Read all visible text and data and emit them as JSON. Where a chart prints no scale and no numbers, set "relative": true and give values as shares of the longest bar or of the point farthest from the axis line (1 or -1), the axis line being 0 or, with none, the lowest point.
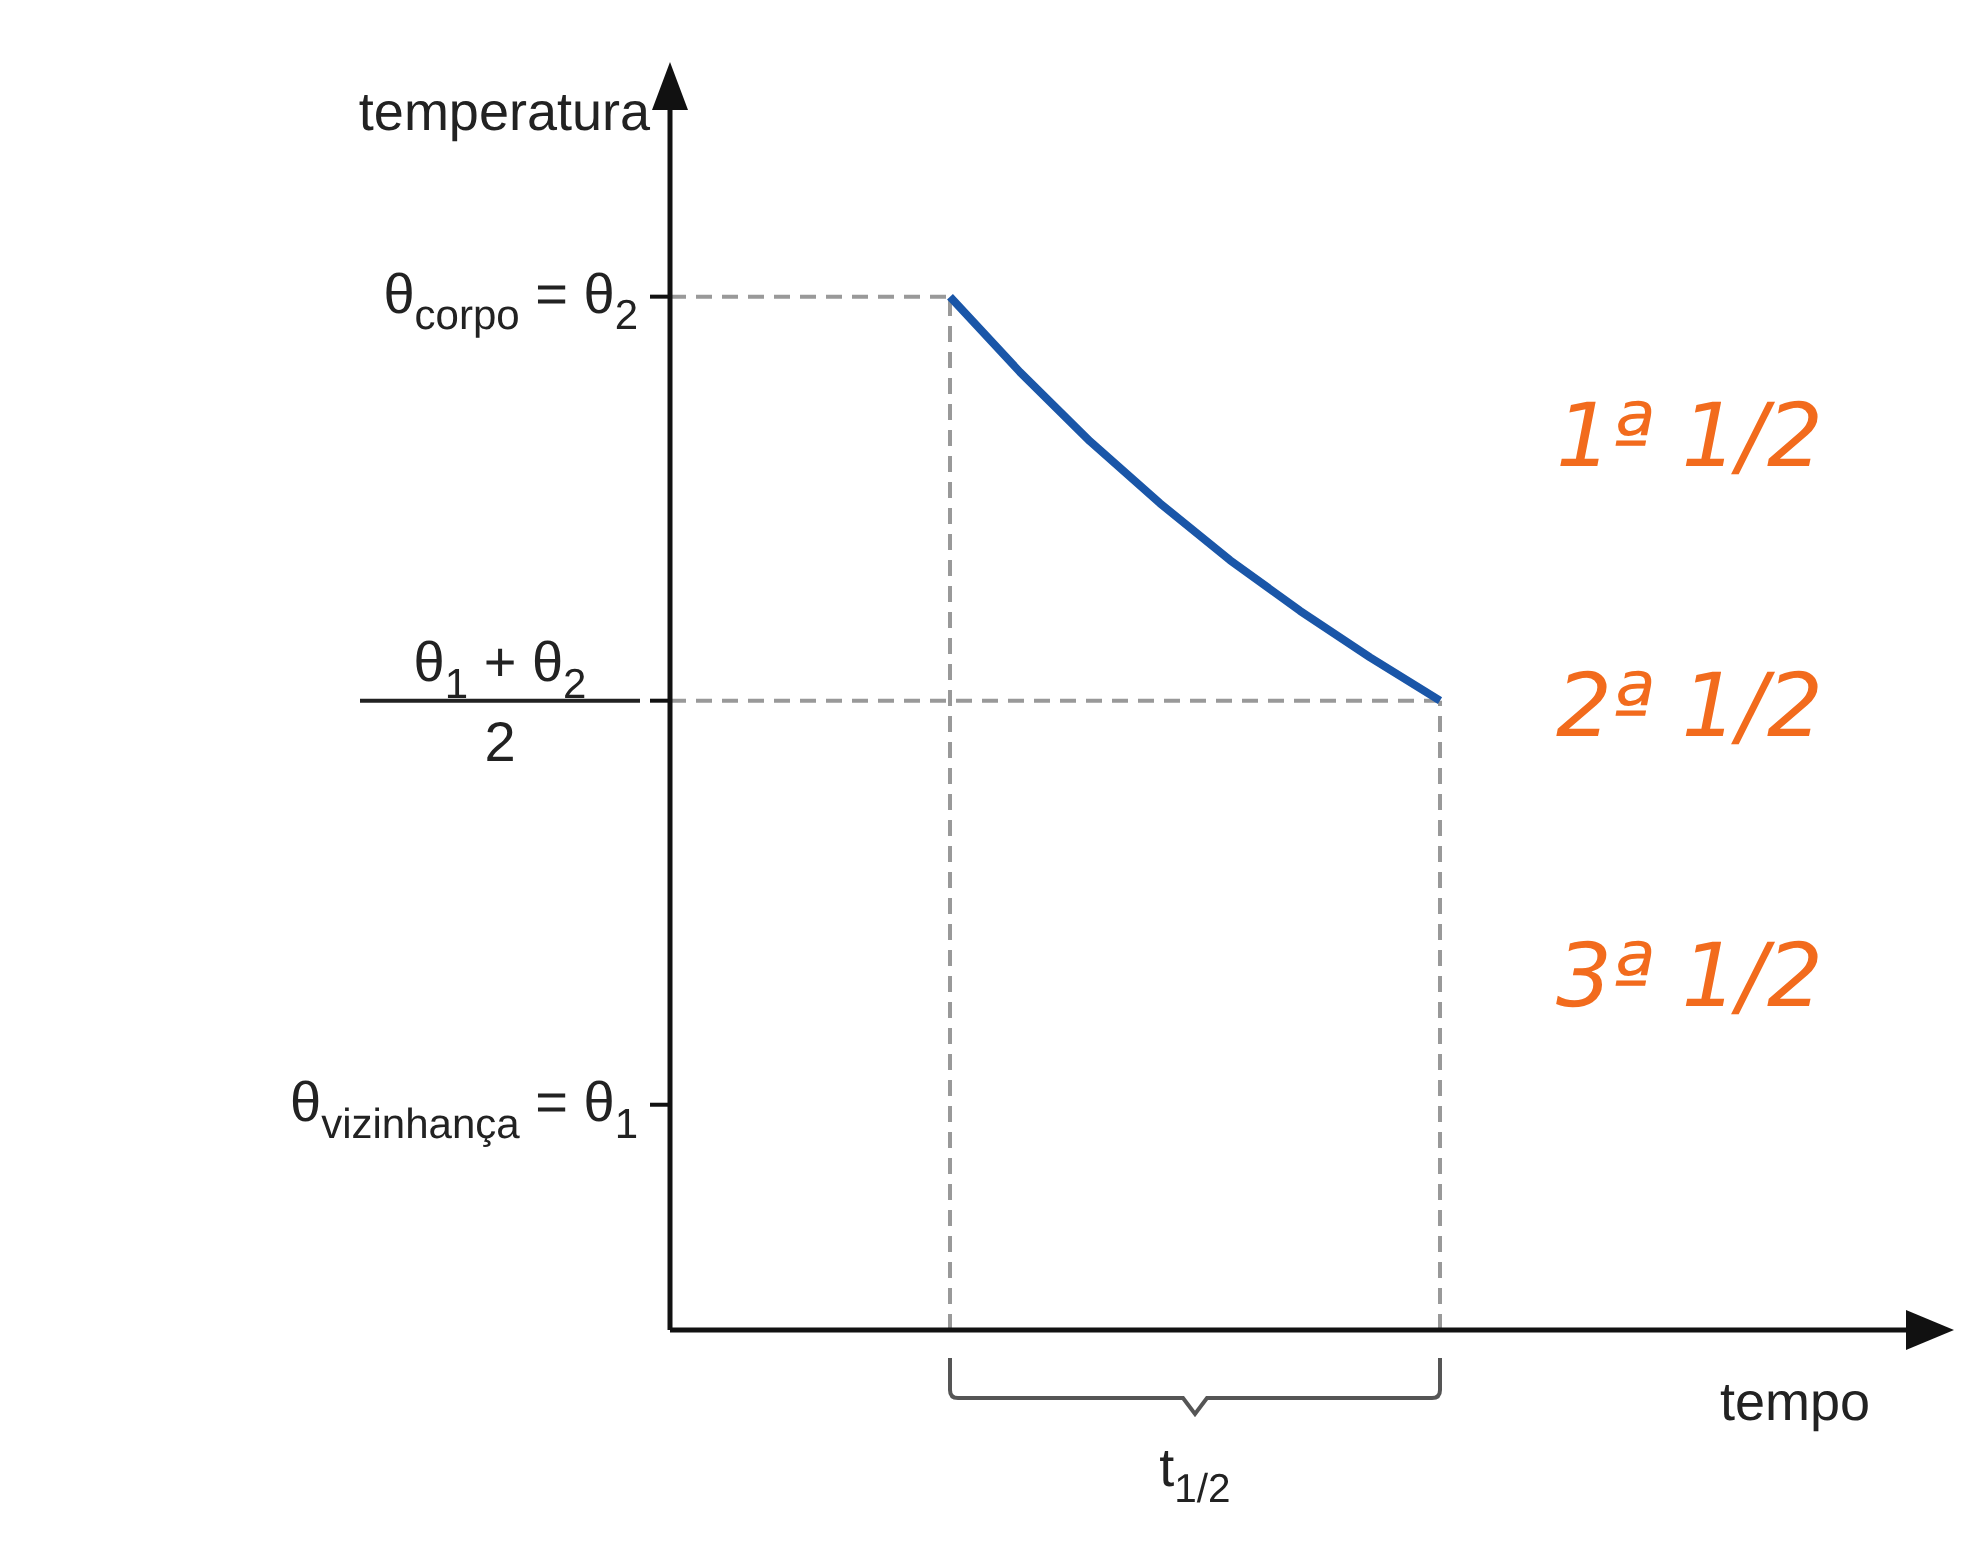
{
  "chart_data": {
    "type": "line",
    "relative": true,
    "xlabel": "tempo",
    "ylabel": "temperatura",
    "categories": [
      null,
      null,
      null,
      null,
      null,
      null,
      null,
      null,
      null,
      null,
      null,
      null,
      null,
      null,
      null,
      null,
      null,
      null,
      null
    ],
    "grid": false,
    "legend": false,
    "marker": "none",
    "line_style": "solid",
    "series": [
      {
        "color": "#1a56a8",
        "values": [
          null,
          null,
          null,
          null,
          1,
          0.927,
          0.86,
          0.8,
          0.745,
          0.696,
          0.651,
          0.609,
          null,
          null,
          null,
          null,
          null,
          null,
          null
        ]
      }
    ],
    "ref_lines": [
      {
        "axis": "y",
        "value": 1,
        "label": "θ$_{corpo}$ = θ$_{2}$",
        "color": "#999999",
        "line_style": "dashed"
      },
      {
        "axis": "y",
        "value": 0.609,
        "label": "θ$_{1}$ + θ$_{2}$\n2",
        "color": "#999999",
        "line_style": "dashed"
      }
    ],
    "annotations": [
      "θ$_{vizinhança}$ = θ$_{1}$",
      "t$_{1/2}$",
      "1ª 1/2",
      "2ª 1/2",
      "3ª 1/2"
    ]
  }
}
